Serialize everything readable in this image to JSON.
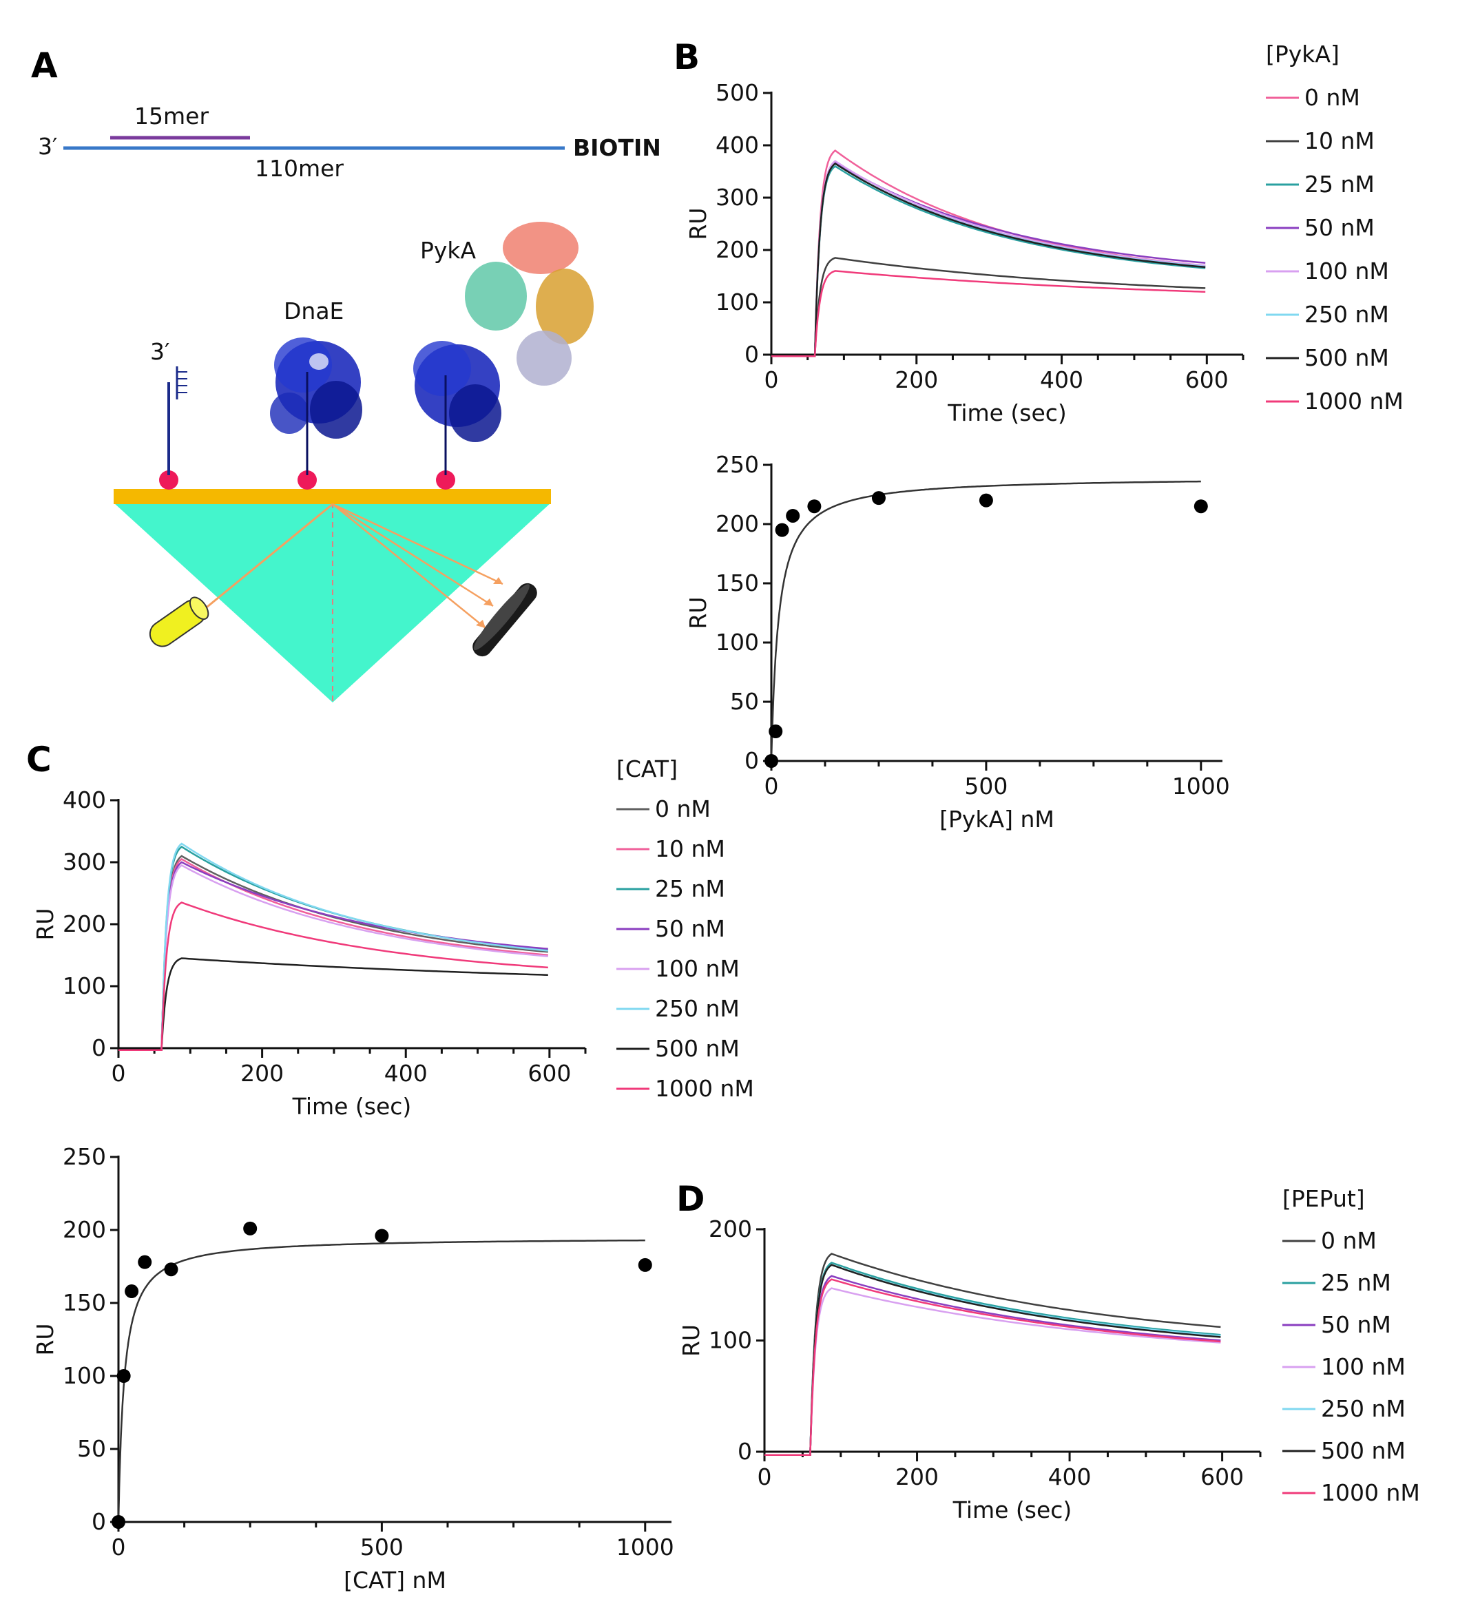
{
  "panels": {
    "A": {
      "letter": "A"
    },
    "B": {
      "letter": "B"
    },
    "C": {
      "letter": "C"
    },
    "D": {
      "letter": "D"
    }
  },
  "diagram": {
    "strand_3prime": "3′",
    "probe_label": "15mer",
    "template_label": "110mer",
    "biotin_label": "BIOTIN",
    "protein_dnae": "DnaE",
    "protein_pyka": "PykA",
    "dna_3prime": "3′",
    "colors": {
      "template": "#3878c8",
      "probe": "#7a3a9c",
      "chip": "#f5b800",
      "prism": "#44f5cc",
      "laser": "#f0f020",
      "streptavidin": "#ee1a5a",
      "dnae": "#1020b8",
      "beam": "#f5a060"
    }
  },
  "chart_data": [
    {
      "id": "B-sensorgram",
      "type": "line",
      "xlabel": "Time (sec)",
      "ylabel": "RU",
      "xlim": [
        0,
        650
      ],
      "ylim": [
        0,
        500
      ],
      "xticks": [
        0,
        200,
        400,
        600
      ],
      "yticks": [
        0,
        100,
        200,
        300,
        400,
        500
      ],
      "legend_title": "[PykA]",
      "legend_position": "right",
      "injection_start": 60,
      "end_time": 600,
      "series": [
        {
          "name": "0 nM",
          "color": "#f0609a",
          "peak": 390,
          "end": 170
        },
        {
          "name": "10 nM",
          "color": "#404040",
          "peak": 185,
          "end": 127
        },
        {
          "name": "25 nM",
          "color": "#2aa0a0",
          "peak": 360,
          "end": 165
        },
        {
          "name": "50 nM",
          "color": "#8a3ec0",
          "peak": 368,
          "end": 175
        },
        {
          "name": "100 nM",
          "color": "#d8a0f0",
          "peak": 370,
          "end": 170
        },
        {
          "name": "250 nM",
          "color": "#80d8f0",
          "peak": 365,
          "end": 168
        },
        {
          "name": "500 nM",
          "color": "#202020",
          "peak": 365,
          "end": 167
        },
        {
          "name": "1000 nM",
          "color": "#f03a7a",
          "peak": 160,
          "end": 120
        }
      ]
    },
    {
      "id": "B-binding",
      "type": "scatter",
      "xlabel": "[PykA] nM",
      "ylabel": "RU",
      "xlim": [
        0,
        1050
      ],
      "ylim": [
        0,
        250
      ],
      "xticks": [
        0,
        500,
        1000
      ],
      "yticks": [
        0,
        50,
        100,
        150,
        200,
        250
      ],
      "points": {
        "x": [
          0,
          10,
          25,
          50,
          100,
          250,
          500,
          1000
        ],
        "y": [
          0,
          25,
          195,
          207,
          215,
          222,
          220,
          215
        ]
      },
      "fit": {
        "model": "Rmax*x/(Kd+x)",
        "Rmax": 240,
        "Kd": 17,
        "x_end": 1000
      }
    },
    {
      "id": "C-sensorgram",
      "type": "line",
      "xlabel": "Time (sec)",
      "ylabel": "RU",
      "xlim": [
        0,
        650
      ],
      "ylim": [
        0,
        400
      ],
      "xticks": [
        0,
        200,
        400,
        600
      ],
      "yticks": [
        0,
        100,
        200,
        300,
        400
      ],
      "legend_title": "[CAT]",
      "legend_position": "right",
      "injection_start": 60,
      "end_time": 600,
      "series": [
        {
          "name": "0 nM",
          "color": "#606060",
          "peak": 310,
          "end": 155
        },
        {
          "name": "10 nM",
          "color": "#f0609a",
          "peak": 305,
          "end": 150
        },
        {
          "name": "25 nM",
          "color": "#2aa0a0",
          "peak": 325,
          "end": 158
        },
        {
          "name": "50 nM",
          "color": "#8a3ec0",
          "peak": 300,
          "end": 160
        },
        {
          "name": "100 nM",
          "color": "#d8a0f0",
          "peak": 295,
          "end": 148
        },
        {
          "name": "250 nM",
          "color": "#80d8f0",
          "peak": 330,
          "end": 157
        },
        {
          "name": "500 nM",
          "color": "#202020",
          "peak": 145,
          "end": 118
        },
        {
          "name": "1000 nM",
          "color": "#f03a7a",
          "peak": 235,
          "end": 130
        }
      ]
    },
    {
      "id": "C-binding",
      "type": "scatter",
      "xlabel": "[CAT] nM",
      "ylabel": "RU",
      "xlim": [
        0,
        1050
      ],
      "ylim": [
        0,
        250
      ],
      "xticks": [
        0,
        500,
        1000
      ],
      "yticks": [
        0,
        50,
        100,
        150,
        200,
        250
      ],
      "points": {
        "x": [
          0,
          10,
          25,
          50,
          100,
          250,
          500,
          1000
        ],
        "y": [
          0,
          100,
          158,
          178,
          173,
          201,
          196,
          176
        ]
      },
      "fit": {
        "model": "Rmax*x/(Kd+x)",
        "Rmax": 195,
        "Kd": 11,
        "x_end": 1000
      }
    },
    {
      "id": "D-sensorgram",
      "type": "line",
      "xlabel": "Time (sec)",
      "ylabel": "RU",
      "xlim": [
        0,
        650
      ],
      "ylim": [
        0,
        200
      ],
      "xticks": [
        0,
        200,
        400,
        600
      ],
      "yticks": [
        0,
        100,
        200
      ],
      "legend_title": "[PEPut]",
      "legend_position": "right",
      "injection_start": 60,
      "end_time": 600,
      "series": [
        {
          "name": "0 nM",
          "color": "#404040",
          "peak": 178,
          "end": 112
        },
        {
          "name": "25 nM",
          "color": "#2aa0a0",
          "peak": 170,
          "end": 105
        },
        {
          "name": "50 nM",
          "color": "#8a3ec0",
          "peak": 158,
          "end": 100
        },
        {
          "name": "100 nM",
          "color": "#d8a0f0",
          "peak": 147,
          "end": 98
        },
        {
          "name": "250 nM",
          "color": "#80d8f0",
          "peak": 168,
          "end": 104
        },
        {
          "name": "500 nM",
          "color": "#202020",
          "peak": 168,
          "end": 103
        },
        {
          "name": "1000 nM",
          "color": "#f03a7a",
          "peak": 155,
          "end": 99
        }
      ]
    }
  ]
}
